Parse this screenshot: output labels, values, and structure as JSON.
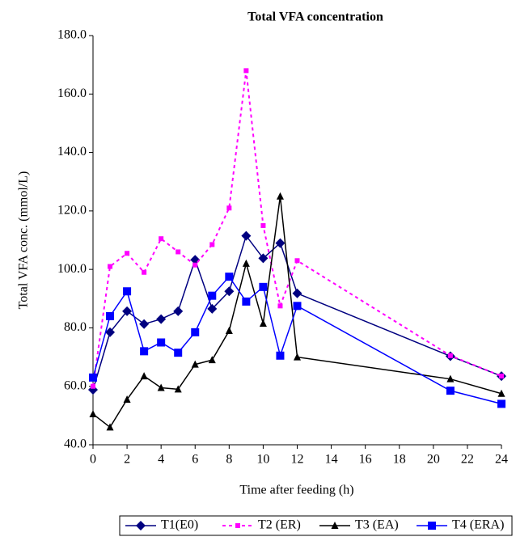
{
  "chart_data": {
    "type": "line",
    "title": "Total VFA concentration",
    "x_label": "Time after feeding (h)",
    "y_label": "Total VFA conc. (mmol/L)",
    "x": [
      0,
      1,
      2,
      3,
      4,
      5,
      6,
      7,
      8,
      9,
      10,
      11,
      12,
      21,
      24
    ],
    "series": [
      {
        "name": "T1(E0)",
        "color": "#000080",
        "marker": "diamond",
        "dashed": false,
        "values": [
          58.8,
          78.5,
          85.7,
          81.3,
          83.0,
          85.7,
          103.3,
          86.5,
          92.5,
          111.5,
          103.8,
          109.0,
          91.8,
          70.3,
          63.5
        ]
      },
      {
        "name": "T2 (ER)",
        "color": "#ff00ff",
        "marker": "small-square",
        "dashed": true,
        "values": [
          60.0,
          101.0,
          105.5,
          99.0,
          110.5,
          106.0,
          101.5,
          108.5,
          121.0,
          168.0,
          115.0,
          87.5,
          103.0,
          70.5,
          63.5
        ]
      },
      {
        "name": "T3 (EA)",
        "color": "#000000",
        "marker": "triangle",
        "dashed": false,
        "values": [
          50.5,
          46.0,
          55.5,
          63.5,
          59.5,
          59.0,
          67.5,
          69.0,
          79.0,
          102.0,
          81.5,
          125.0,
          70.0,
          62.5,
          57.5
        ]
      },
      {
        "name": "T4 (ERA)",
        "color": "#0000ff",
        "marker": "square",
        "dashed": false,
        "values": [
          63.0,
          84.0,
          92.5,
          72.0,
          75.0,
          71.5,
          78.5,
          91.0,
          97.5,
          89.0,
          94.0,
          70.5,
          87.5,
          58.5,
          54.0
        ]
      }
    ],
    "xlim": [
      0,
      24
    ],
    "xticks": [
      0,
      2,
      4,
      6,
      8,
      10,
      12,
      14,
      16,
      18,
      20,
      22,
      24
    ],
    "ylim": [
      40,
      180
    ],
    "yticks": [
      {
        "value": 40,
        "label": "40.0"
      },
      {
        "value": 60,
        "label": "60.0"
      },
      {
        "value": 80,
        "label": "80.0"
      },
      {
        "value": 100,
        "label": "100.0"
      },
      {
        "value": 120,
        "label": "120.0"
      },
      {
        "value": 140,
        "label": "140.0"
      },
      {
        "value": 160,
        "label": "160.0"
      },
      {
        "value": 180,
        "label": "180.0"
      }
    ],
    "grid": false,
    "legend": "bottom"
  }
}
